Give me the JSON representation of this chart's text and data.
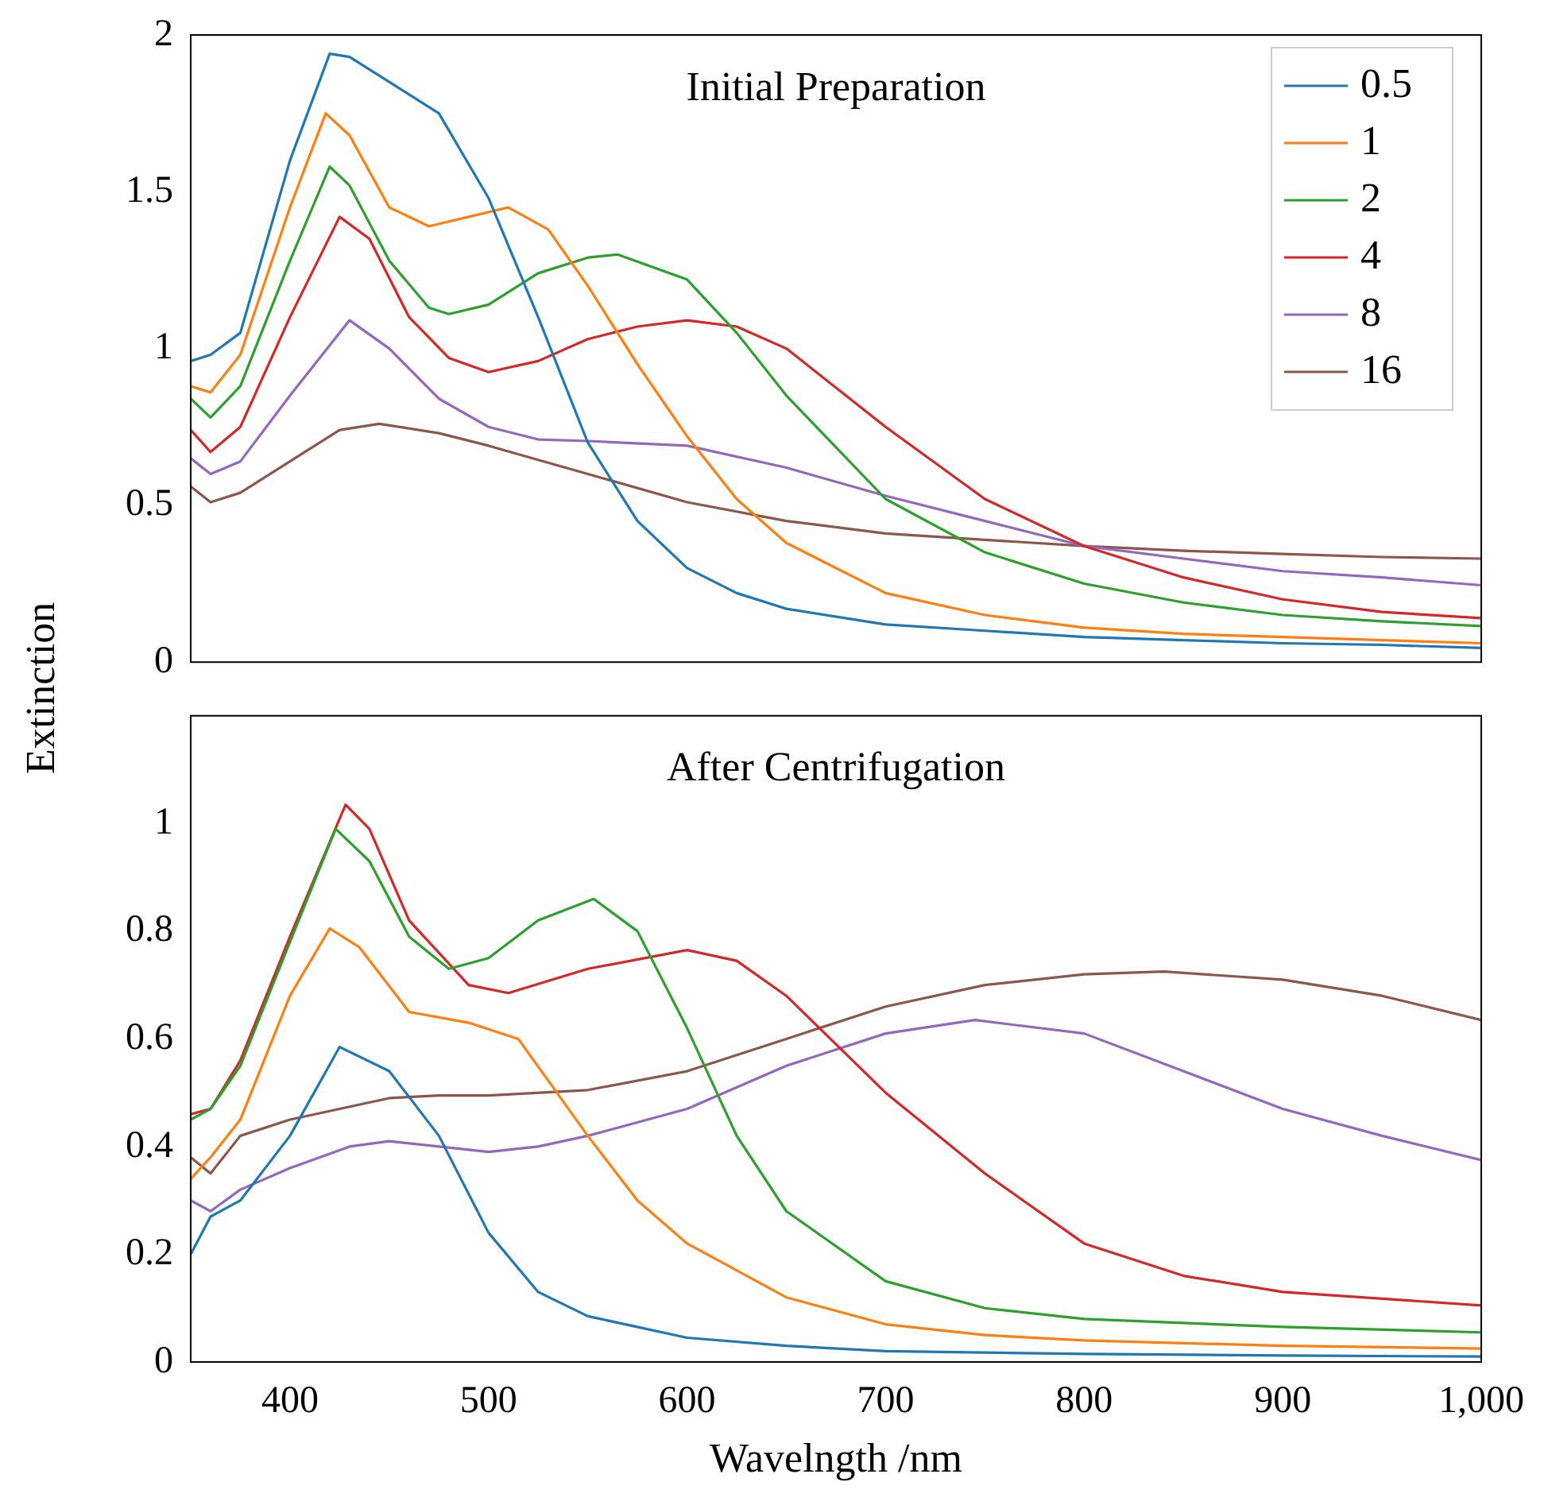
{
  "chart_data": [
    {
      "type": "line",
      "title": "Initial Preparation",
      "ylabel": "Extinction",
      "xlim": [
        350,
        1000
      ],
      "ylim": [
        0,
        2
      ],
      "yticks": [
        0,
        0.5,
        1,
        1.5,
        2
      ],
      "tick_labels": "y",
      "legend": "top right",
      "grid": false,
      "marker": "none",
      "line_style": "solid",
      "series": [
        {
          "name": "0.5",
          "color": "#1f77b4",
          "x": [
            350,
            360,
            375,
            400,
            420,
            430,
            450,
            475,
            500,
            525,
            550,
            575,
            600,
            625,
            650,
            700,
            750,
            800,
            850,
            900,
            950,
            1000
          ],
          "values": [
            0.96,
            0.98,
            1.05,
            1.6,
            1.94,
            1.93,
            1.85,
            1.75,
            1.48,
            1.1,
            0.7,
            0.45,
            0.3,
            0.22,
            0.17,
            0.12,
            0.1,
            0.08,
            0.07,
            0.06,
            0.055,
            0.045
          ]
        },
        {
          "name": "1",
          "color": "#ff7f0e",
          "x": [
            350,
            360,
            375,
            400,
            418,
            430,
            450,
            470,
            490,
            510,
            530,
            550,
            575,
            600,
            625,
            650,
            700,
            750,
            800,
            850,
            900,
            950,
            1000
          ],
          "values": [
            0.88,
            0.86,
            0.98,
            1.45,
            1.75,
            1.68,
            1.45,
            1.39,
            1.42,
            1.45,
            1.38,
            1.2,
            0.95,
            0.72,
            0.52,
            0.38,
            0.22,
            0.15,
            0.11,
            0.09,
            0.08,
            0.07,
            0.06
          ]
        },
        {
          "name": "2",
          "color": "#2ca02c",
          "x": [
            350,
            360,
            375,
            400,
            420,
            430,
            450,
            470,
            480,
            500,
            525,
            550,
            565,
            600,
            625,
            650,
            700,
            750,
            800,
            850,
            900,
            950,
            1000
          ],
          "values": [
            0.84,
            0.78,
            0.88,
            1.28,
            1.58,
            1.52,
            1.28,
            1.13,
            1.11,
            1.14,
            1.24,
            1.29,
            1.3,
            1.22,
            1.05,
            0.85,
            0.52,
            0.35,
            0.25,
            0.19,
            0.15,
            0.13,
            0.115
          ]
        },
        {
          "name": "4",
          "color": "#d62728",
          "x": [
            350,
            360,
            375,
            400,
            425,
            440,
            460,
            480,
            500,
            525,
            550,
            575,
            600,
            625,
            650,
            700,
            750,
            800,
            850,
            900,
            950,
            1000
          ],
          "values": [
            0.74,
            0.67,
            0.75,
            1.1,
            1.42,
            1.35,
            1.1,
            0.97,
            0.925,
            0.96,
            1.03,
            1.07,
            1.09,
            1.07,
            1.0,
            0.75,
            0.52,
            0.37,
            0.27,
            0.2,
            0.16,
            0.14
          ]
        },
        {
          "name": "8",
          "color": "#9467bd",
          "x": [
            350,
            360,
            375,
            400,
            430,
            450,
            475,
            500,
            525,
            550,
            600,
            650,
            700,
            750,
            800,
            850,
            900,
            950,
            1000
          ],
          "values": [
            0.65,
            0.6,
            0.64,
            0.85,
            1.09,
            1.0,
            0.84,
            0.75,
            0.71,
            0.705,
            0.69,
            0.62,
            0.53,
            0.45,
            0.37,
            0.33,
            0.29,
            0.27,
            0.245
          ]
        },
        {
          "name": "16",
          "color": "#8c564b",
          "x": [
            350,
            360,
            375,
            400,
            425,
            445,
            475,
            500,
            550,
            600,
            650,
            700,
            750,
            800,
            850,
            900,
            950,
            1000
          ],
          "values": [
            0.56,
            0.51,
            0.54,
            0.64,
            0.74,
            0.76,
            0.73,
            0.69,
            0.6,
            0.51,
            0.45,
            0.41,
            0.39,
            0.37,
            0.355,
            0.345,
            0.335,
            0.33
          ]
        }
      ]
    },
    {
      "type": "line",
      "title": "After Centrifugation",
      "xlabel": "Wavelngth /nm",
      "xlim": [
        350,
        1000
      ],
      "xticks": [
        400,
        500,
        600,
        700,
        800,
        900,
        {
          "value": 1000,
          "label": "1,000"
        }
      ],
      "ylim": [
        0,
        1.2
      ],
      "yticks": [
        0,
        0.2,
        0.4,
        0.6,
        0.8,
        1
      ],
      "grid": false,
      "marker": "none",
      "line_style": "solid",
      "series": [
        {
          "color": "#1f77b4",
          "x": [
            350,
            360,
            375,
            400,
            425,
            450,
            475,
            500,
            525,
            550,
            600,
            650,
            700,
            800,
            900,
            1000
          ],
          "values": [
            0.2,
            0.27,
            0.3,
            0.42,
            0.585,
            0.54,
            0.42,
            0.24,
            0.13,
            0.085,
            0.045,
            0.03,
            0.02,
            0.015,
            0.012,
            0.01
          ]
        },
        {
          "color": "#ff7f0e",
          "x": [
            350,
            360,
            375,
            400,
            420,
            435,
            460,
            490,
            515,
            550,
            575,
            600,
            650,
            700,
            750,
            800,
            900,
            1000
          ],
          "values": [
            0.34,
            0.38,
            0.45,
            0.68,
            0.805,
            0.77,
            0.65,
            0.63,
            0.6,
            0.42,
            0.3,
            0.22,
            0.12,
            0.07,
            0.05,
            0.04,
            0.03,
            0.025
          ]
        },
        {
          "color": "#2ca02c",
          "x": [
            350,
            360,
            375,
            400,
            423,
            440,
            460,
            480,
            500,
            525,
            553,
            575,
            600,
            625,
            650,
            700,
            750,
            800,
            900,
            1000
          ],
          "values": [
            0.45,
            0.47,
            0.55,
            0.78,
            0.99,
            0.93,
            0.79,
            0.73,
            0.75,
            0.82,
            0.86,
            0.8,
            0.62,
            0.42,
            0.28,
            0.15,
            0.1,
            0.08,
            0.065,
            0.055
          ]
        },
        {
          "color": "#d62728",
          "x": [
            350,
            360,
            375,
            400,
            428,
            440,
            460,
            490,
            510,
            550,
            600,
            625,
            650,
            700,
            750,
            800,
            850,
            900,
            1000
          ],
          "values": [
            0.46,
            0.47,
            0.56,
            0.79,
            1.035,
            0.99,
            0.82,
            0.7,
            0.685,
            0.73,
            0.765,
            0.745,
            0.68,
            0.5,
            0.35,
            0.22,
            0.16,
            0.13,
            0.105
          ]
        },
        {
          "color": "#9467bd",
          "x": [
            350,
            360,
            375,
            400,
            430,
            450,
            475,
            500,
            525,
            550,
            600,
            650,
            700,
            745,
            800,
            850,
            900,
            950,
            1000
          ],
          "values": [
            0.3,
            0.28,
            0.32,
            0.36,
            0.4,
            0.41,
            0.4,
            0.39,
            0.4,
            0.42,
            0.47,
            0.55,
            0.61,
            0.635,
            0.61,
            0.54,
            0.47,
            0.42,
            0.375
          ]
        },
        {
          "color": "#8c564b",
          "x": [
            350,
            360,
            375,
            400,
            450,
            475,
            500,
            550,
            600,
            650,
            700,
            750,
            800,
            840,
            900,
            950,
            1000
          ],
          "values": [
            0.38,
            0.35,
            0.42,
            0.45,
            0.49,
            0.495,
            0.495,
            0.505,
            0.54,
            0.6,
            0.66,
            0.7,
            0.72,
            0.725,
            0.71,
            0.68,
            0.635
          ]
        }
      ]
    }
  ]
}
